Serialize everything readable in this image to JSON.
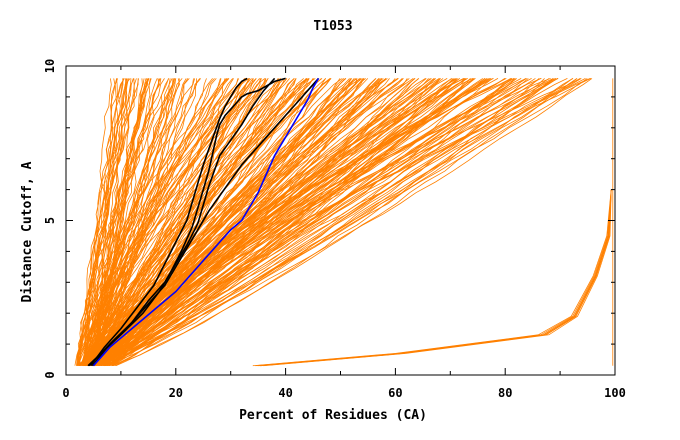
{
  "chart_data": {
    "type": "line",
    "title": "T1053",
    "xlabel": "Percent of Residues (CA)",
    "ylabel": "Distance Cutoff, A",
    "xlim": [
      0,
      100
    ],
    "ylim": [
      0,
      10
    ],
    "x_ticks": [
      0,
      20,
      40,
      60,
      80,
      100
    ],
    "y_ticks": [
      0,
      5,
      10
    ],
    "x_tick_labels": [
      "0",
      "20",
      "40",
      "60",
      "80",
      "100"
    ],
    "y_tick_labels": [
      "0",
      "5",
      "10"
    ],
    "grid": false,
    "colors": {
      "background_models": "#ff8000",
      "highlight_black": "#000000",
      "highlight_blue": "#0000ff"
    },
    "series": [
      {
        "color": "#000000",
        "x": [
          4.5,
          7,
          10,
          13,
          16,
          18,
          20,
          22,
          23,
          24,
          25,
          26,
          27,
          28,
          29,
          30,
          31,
          32,
          33
        ],
        "y": [
          0.3,
          0.9,
          1.5,
          2.2,
          2.9,
          3.6,
          4.3,
          5.0,
          5.6,
          6.2,
          6.8,
          7.3,
          7.8,
          8.3,
          8.7,
          9.0,
          9.3,
          9.5,
          9.6
        ]
      },
      {
        "color": "#000000",
        "x": [
          4.8,
          8,
          12,
          15,
          18,
          20,
          22,
          24,
          25,
          26,
          27,
          28,
          30,
          32,
          34,
          36,
          38
        ],
        "y": [
          0.3,
          1.0,
          1.7,
          2.4,
          3.0,
          3.6,
          4.2,
          4.9,
          5.5,
          6.1,
          6.6,
          7.1,
          7.6,
          8.1,
          8.7,
          9.2,
          9.6
        ]
      },
      {
        "color": "#000000",
        "x": [
          4.2,
          8,
          12,
          15,
          18,
          20,
          22,
          24,
          26,
          28,
          30,
          32,
          34,
          36,
          38,
          40,
          42,
          44,
          46
        ],
        "y": [
          0.3,
          1.0,
          1.7,
          2.3,
          2.9,
          3.5,
          4.1,
          4.7,
          5.3,
          5.8,
          6.3,
          6.8,
          7.2,
          7.6,
          8.0,
          8.4,
          8.8,
          9.2,
          9.6
        ]
      },
      {
        "color": "#000000",
        "x": [
          4.0,
          7,
          10,
          14,
          17,
          19,
          21,
          23,
          24,
          25,
          26,
          26.5,
          27,
          27.5,
          28,
          29,
          30,
          31,
          32,
          33,
          35,
          36,
          37,
          38,
          39,
          40
        ],
        "y": [
          0.3,
          0.8,
          1.3,
          2.0,
          2.7,
          3.3,
          4.0,
          4.8,
          5.4,
          6.0,
          6.6,
          7.0,
          7.4,
          7.8,
          8.1,
          8.4,
          8.6,
          8.8,
          9.0,
          9.1,
          9.2,
          9.3,
          9.4,
          9.5,
          9.55,
          9.6
        ]
      },
      {
        "color": "#0000ff",
        "x": [
          5.0,
          8,
          12,
          16,
          20,
          23,
          26,
          28,
          30,
          32,
          33,
          34,
          35,
          36,
          37,
          38,
          39,
          40,
          41,
          42,
          43,
          44,
          45,
          46
        ],
        "y": [
          0.3,
          0.9,
          1.5,
          2.1,
          2.7,
          3.3,
          3.9,
          4.3,
          4.7,
          5.0,
          5.3,
          5.6,
          5.9,
          6.3,
          6.7,
          7.1,
          7.4,
          7.7,
          8.0,
          8.3,
          8.6,
          8.9,
          9.3,
          9.6
        ]
      }
    ]
  }
}
